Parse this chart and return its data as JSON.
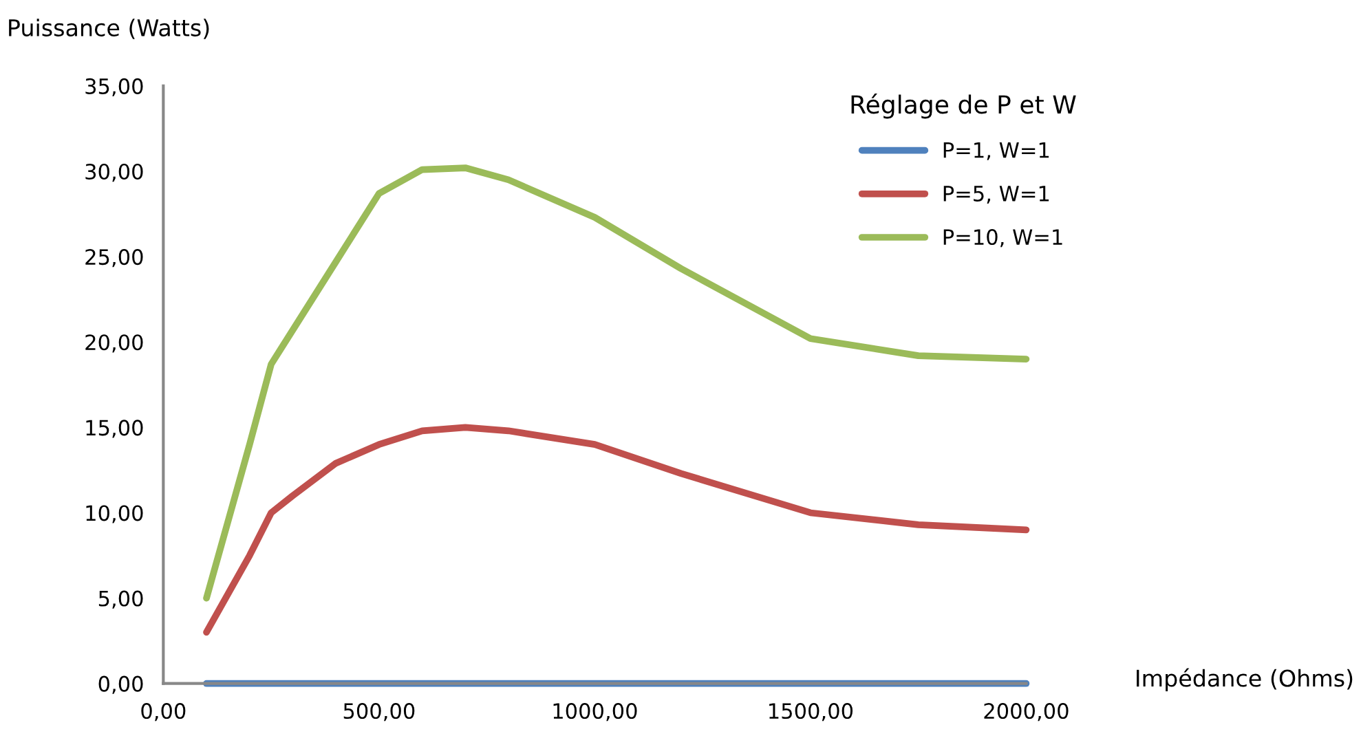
{
  "chart_data": {
    "type": "line",
    "xlabel": "Impédance (Ohms)",
    "ylabel": "Puissance (Watts)",
    "legend_title": "Réglage de P et W",
    "x": [
      100,
      200,
      250,
      300,
      400,
      500,
      600,
      700,
      800,
      1000,
      1200,
      1500,
      1750,
      2000
    ],
    "series": [
      {
        "name": "P=1, W=1",
        "color": "#4f81bd",
        "values": [
          0,
          0,
          0,
          0,
          0,
          0,
          0,
          0,
          0,
          0,
          0,
          0,
          0,
          0
        ]
      },
      {
        "name": "P=5, W=1",
        "color": "#c0504d",
        "values": [
          3,
          7.5,
          10,
          11,
          12.9,
          14,
          14.8,
          15,
          14.8,
          14,
          12.3,
          10,
          9.3,
          9
        ]
      },
      {
        "name": "P=10, W=1",
        "color": "#9bbb59",
        "values": [
          5,
          14,
          18.7,
          20.7,
          24.7,
          28.7,
          30.1,
          30.2,
          29.5,
          27.3,
          24.3,
          20.2,
          19.2,
          19
        ]
      }
    ],
    "xlim": [
      0,
      2000
    ],
    "ylim": [
      0,
      35
    ],
    "xticks": [
      {
        "value": 0,
        "label": "0,00"
      },
      {
        "value": 500,
        "label": "500,00"
      },
      {
        "value": 1000,
        "label": "1000,00"
      },
      {
        "value": 1500,
        "label": "1500,00"
      },
      {
        "value": 2000,
        "label": "2000,00"
      }
    ],
    "yticks": [
      {
        "value": 0,
        "label": "0,00"
      },
      {
        "value": 5,
        "label": "5,00"
      },
      {
        "value": 10,
        "label": "10,00"
      },
      {
        "value": 15,
        "label": "15,00"
      },
      {
        "value": 20,
        "label": "20,00"
      },
      {
        "value": 25,
        "label": "25,00"
      },
      {
        "value": 30,
        "label": "30,00"
      },
      {
        "value": 35,
        "label": "35,00"
      }
    ],
    "grid": false,
    "legend": "top right",
    "marker": "none",
    "line_style": "solid"
  }
}
